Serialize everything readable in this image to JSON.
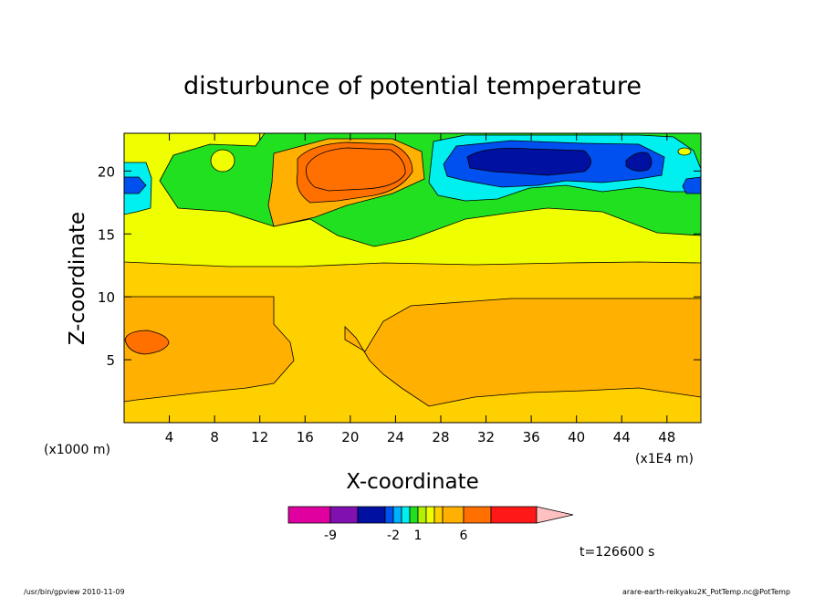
{
  "chart_data": {
    "type": "heatmap",
    "title": "disturbunce of potential temperature",
    "xlabel": "X-coordinate",
    "ylabel": "Z-coordinate",
    "x_unit": "(x1E4 m)",
    "y_unit": "(x1000 m)",
    "xlim": [
      0,
      51
    ],
    "ylim": [
      0,
      23
    ],
    "x_ticks": [
      4,
      8,
      12,
      16,
      20,
      24,
      28,
      32,
      36,
      40,
      44,
      48
    ],
    "y_ticks": [
      5,
      10,
      15,
      20
    ],
    "colorbar": {
      "levels": [
        -12,
        -9,
        -6,
        -3,
        -2,
        -1,
        0,
        1,
        2,
        3,
        4,
        6,
        8,
        10,
        12
      ],
      "colors": [
        "#e000a0",
        "#8010b0",
        "#0010a0",
        "#0050f0",
        "#00b0ff",
        "#00f0f0",
        "#20e020",
        "#b0f000",
        "#f0ff00",
        "#ffd000",
        "#ffb000",
        "#ff7000",
        "#ff1818",
        "#ff8080",
        "#ffc0c0"
      ],
      "tick_labels": [
        "-9",
        "-2",
        "1",
        "6"
      ]
    },
    "time_label": "t=126600 s",
    "grid": false
  },
  "footer": {
    "left": "/usr/bin/gpview   2010-11-09",
    "right": "arare-earth-reikyaku2K_PotTemp.nc@PotTemp"
  }
}
